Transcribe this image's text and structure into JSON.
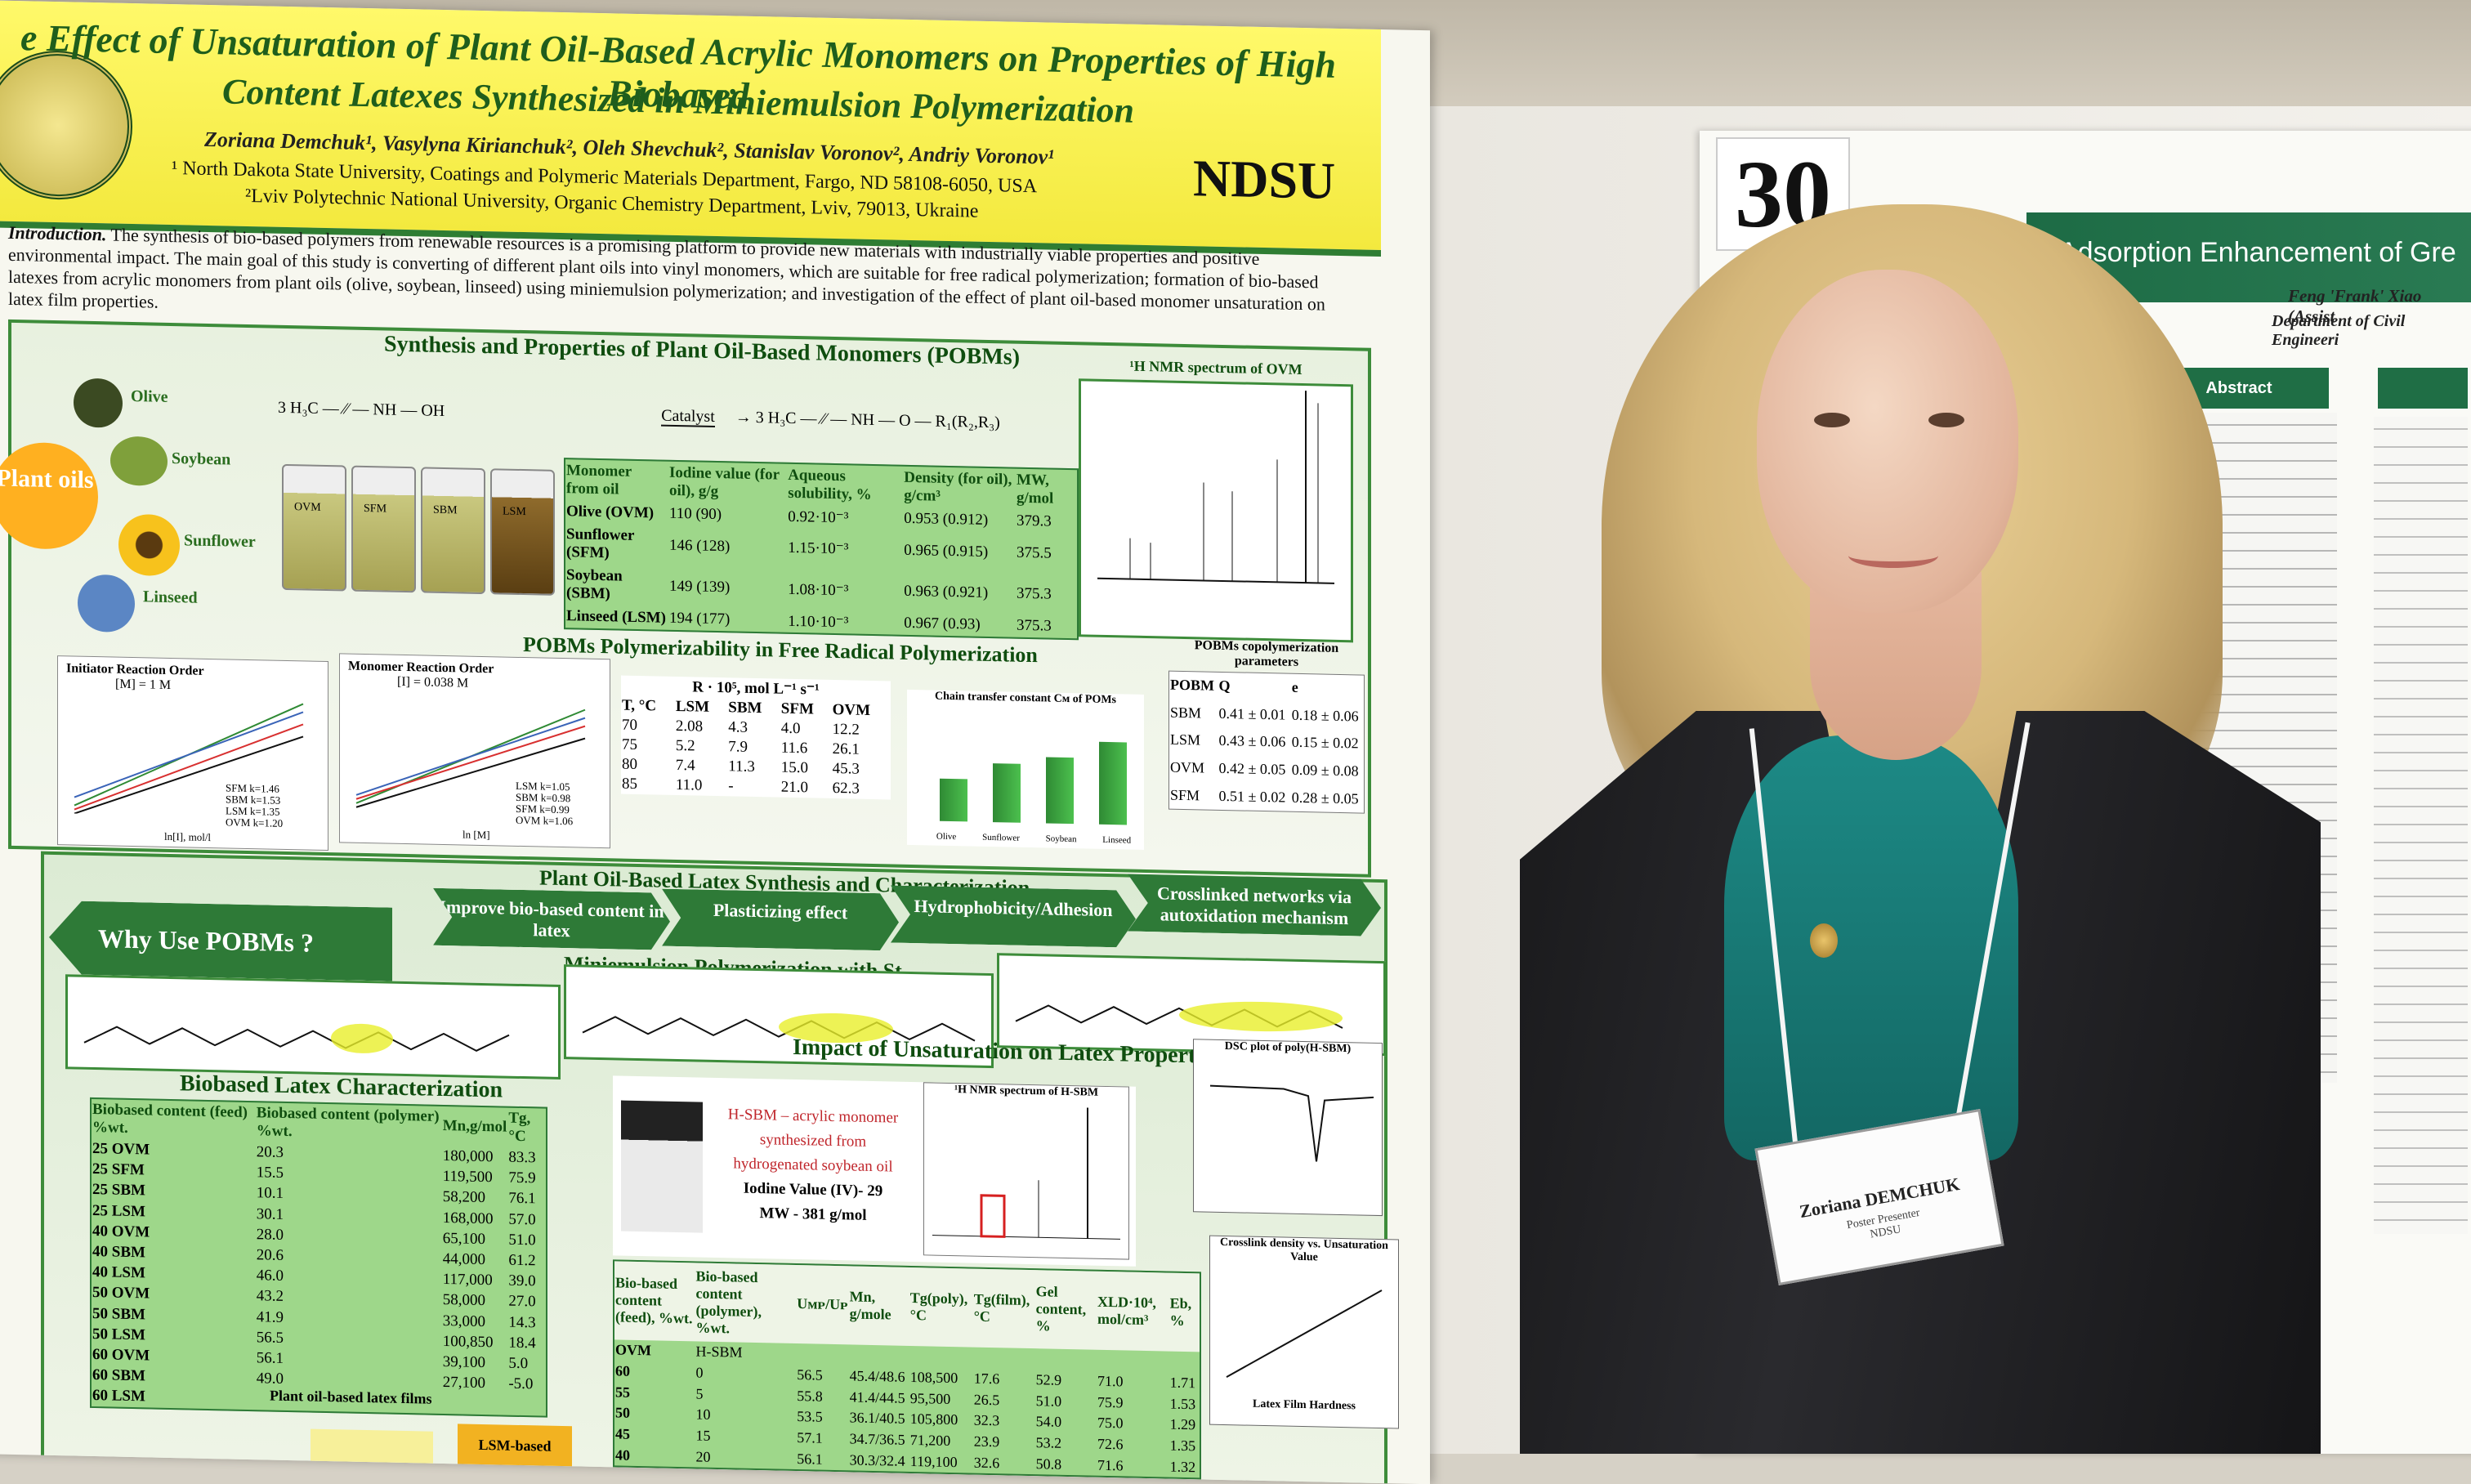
{
  "left_poster": {
    "title_line1": "e Effect of Unsaturation of Plant Oil-Based Acrylic Monomers on Properties of High Biobased",
    "title_line2": "Content Latexes Synthesized in Miniemulsion Polymerization",
    "authors": "Zoriana Demchuk¹, Vasylyna Kirianchuk², Oleh Shevchuk², Stanislav Voronov², Andriy Voronov¹",
    "affiliation1": "¹ North Dakota State University, Coatings and Polymeric Materials Department, Fargo, ND 58108-6050, USA",
    "affiliation2": "²Lviv Polytechnic National University, Organic Chemistry Department, Lviv, 79013, Ukraine",
    "logo_text": "NDSU",
    "intro_label": "Introduction.",
    "intro_text": "The synthesis of bio-based polymers from renewable resources is a promising platform to provide new materials with industrially viable properties and positive environmental impact. The main goal of this study is converting of different plant oils into vinyl monomers, which are suitable for free radical polymerization; formation of bio-based latexes from acrylic monomers from plant oils (olive, soybean, linseed) using miniemulsion polymerization; and investigation of the effect of plant oil-based monomer unsaturation on latex film properties.",
    "section_synthesis": "Synthesis and Properties of Plant Oil-Based Monomers (POBMs)",
    "plant_oils": "Plant oils",
    "oils": [
      "Olive",
      "Soybean",
      "Sunflower",
      "Linseed"
    ],
    "vials": [
      "OVM",
      "SFM",
      "SBM",
      "LSM"
    ],
    "catalyst": "Catalyst",
    "nmr_title": "¹H NMR spectrum of OVM",
    "monomer_table": {
      "headers": [
        "Monomer from oil",
        "Iodine value (for oil), g/g",
        "Aqueous solubility, %",
        "Density (for oil), g/cm³",
        "MW, g/mol"
      ],
      "rows": [
        [
          "Olive (OVM)",
          "110 (90)",
          "0.92·10⁻³",
          "0.953 (0.912)",
          "379.3"
        ],
        [
          "Sunflower (SFM)",
          "146 (128)",
          "1.15·10⁻³",
          "0.965 (0.915)",
          "375.5"
        ],
        [
          "Soybean (SBM)",
          "149 (139)",
          "1.08·10⁻³",
          "0.963 (0.921)",
          "375.3"
        ],
        [
          "Linseed (LSM)",
          "194 (177)",
          "1.10·10⁻³",
          "0.967 (0.93)",
          "375.3"
        ]
      ]
    },
    "section_polymerizability": "POBMs Polymerizability in Free Radical Polymerization",
    "initiator_plot": {
      "title": "Initiator Reaction Order",
      "subtitle": "[M] = 1 M",
      "xlabel": "ln[I], mol/l",
      "legend": [
        "SFM k=1.46",
        "SBM k=1.53",
        "LSM k=1.35",
        "OVM k=1.20"
      ]
    },
    "monomer_plot": {
      "title": "Monomer Reaction Order",
      "subtitle": "[I] = 0.038 M",
      "xlabel": "ln [M]",
      "legend": [
        "LSM k=1.05",
        "SBM k=0.98",
        "SFM k=0.99",
        "OVM k=1.06"
      ]
    },
    "rate_table": {
      "caption": "R · 10⁵, mol L⁻¹ s⁻¹",
      "headers": [
        "T, °C",
        "LSM",
        "SBM",
        "SFM",
        "OVM"
      ],
      "rows": [
        [
          "70",
          "2.08",
          "4.3",
          "4.0",
          "12.2"
        ],
        [
          "75",
          "5.2",
          "7.9",
          "11.6",
          "26.1"
        ],
        [
          "80",
          "7.4",
          "11.3",
          "15.0",
          "45.3"
        ],
        [
          "85",
          "11.0",
          "-",
          "21.0",
          "62.3"
        ]
      ]
    },
    "chain_transfer_label": "Chain transfer constant Cм of POMs",
    "chain_bars": [
      {
        "label": "Olive",
        "value": 0.4
      },
      {
        "label": "Sunflower",
        "value": 0.55
      },
      {
        "label": "Soybean",
        "value": 0.62
      },
      {
        "label": "Linseed",
        "value": 0.78
      }
    ],
    "copoly": {
      "title": "POBMs copolymerization parameters",
      "headers": [
        "POBM",
        "Q",
        "e"
      ],
      "rows": [
        [
          "SBM",
          "0.41 ± 0.01",
          "0.18 ± 0.06"
        ],
        [
          "LSM",
          "0.43 ± 0.06",
          "0.15 ± 0.02"
        ],
        [
          "OVM",
          "0.42 ± 0.05",
          "0.09 ± 0.08"
        ],
        [
          "SFM",
          "0.51 ± 0.02",
          "0.28 ± 0.05"
        ]
      ]
    },
    "section_latex": "Plant Oil-Based Latex Synthesis and Characterization",
    "why": "Why Use POBMs ?",
    "benefits": [
      "Improve bio-based content in latex",
      "Plasticizing effect",
      "Hydrophobicity/Adhesion",
      "Crosslinked networks via autoxidation mechanism"
    ],
    "section_miniemulsion": "Miniemulsion Polymerization with St",
    "section_impact": "Impact of Unsaturation on Latex Properties",
    "hsbm_nmr_title": "¹H NMR spectrum of H-SBM",
    "hsbm_desc": "H-SBM – acrylic monomer synthesized from hydrogenated soybean oil",
    "hsbm_iodine": "Iodine Value (IV)- 29",
    "hsbm_mw": "MW - 381 g/mol",
    "dsc_title": "DSC plot of poly(H-SBM)",
    "xld_title": "Crosslink density vs. Unsaturation Value",
    "hardness_title": "Latex Film Hardness",
    "section_biobased": "Biobased Latex Characterization",
    "latex_table": {
      "headers": [
        "Biobased content (feed) %wt.",
        "Biobased content (polymer) %wt.",
        "Mn,g/mol",
        "Tg,°C"
      ],
      "rows": [
        [
          "25 OVM",
          "20.3",
          "180,000",
          "83.3"
        ],
        [
          "25 SFM",
          "15.5",
          "119,500",
          "75.9"
        ],
        [
          "25 SBM",
          "10.1",
          "58,200",
          "76.1"
        ],
        [
          "25 LSM",
          "30.1",
          "168,000",
          "57.0"
        ],
        [
          "40 OVM",
          "28.0",
          "65,100",
          "51.0"
        ],
        [
          "40 SBM",
          "20.6",
          "44,000",
          "61.2"
        ],
        [
          "40 LSM",
          "46.0",
          "117,000",
          "39.0"
        ],
        [
          "50 OVM",
          "43.2",
          "58,000",
          "27.0"
        ],
        [
          "50 SBM",
          "41.9",
          "33,000",
          "14.3"
        ],
        [
          "50 LSM",
          "56.5",
          "100,850",
          "18.4"
        ],
        [
          "60 OVM",
          "56.1",
          "39,100",
          "5.0"
        ],
        [
          "60 SBM",
          "49.0",
          "27,100",
          "-5.0"
        ],
        [
          "60 LSM",
          "",
          "",
          ""
        ]
      ]
    },
    "latex_films_caption": "Plant oil-based latex films",
    "latex_films": [
      "LSM-based"
    ],
    "hsbm_table": {
      "headers": [
        "Bio-based content (feed), %wt.",
        "Bio-based content (polymer), %wt.",
        "Uмᴘ/Uᴘ",
        "Mn, g/mole",
        "Tg(poly), °C",
        "Tg(film), °C",
        "Gel content, %",
        "XLD·10⁴, mol/cm³",
        "Eb, %"
      ],
      "rows": [
        [
          "OVM",
          "H-SBM",
          "",
          "",
          "",
          "",
          "",
          "",
          ""
        ],
        [
          "60",
          "0",
          "56.5",
          "45.4/48.6",
          "108,500",
          "17.6",
          "52.9",
          "71.0",
          "1.71"
        ],
        [
          "55",
          "5",
          "55.8",
          "41.4/44.5",
          "95,500",
          "26.5",
          "51.0",
          "75.9",
          "1.53"
        ],
        [
          "50",
          "10",
          "53.5",
          "36.1/40.5",
          "105,800",
          "32.3",
          "54.0",
          "75.0",
          "1.29"
        ],
        [
          "45",
          "15",
          "57.1",
          "34.7/36.5",
          "71,200",
          "23.9",
          "53.2",
          "72.6",
          "1.35"
        ],
        [
          "40",
          "20",
          "56.1",
          "30.3/32.4",
          "119,100",
          "32.6",
          "50.8",
          "71.6",
          "1.32"
        ]
      ]
    }
  },
  "right_poster": {
    "booth_number": "30",
    "title": "Adsorption Enhancement of Gre",
    "author": "Feng 'Frank' Xiao (Assist",
    "department": "Department of Civil Engineeri",
    "abstract_heading": "Abstract"
  },
  "badge": {
    "name": "Zoriana DEMCHUK",
    "role": "Poster Presenter",
    "org": "NDSU"
  },
  "colors": {
    "poster_green": "#2e7a37",
    "banner_yellow": "#f3e93e",
    "table_green": "#9ed78a",
    "right_banner": "#1d6b45"
  }
}
